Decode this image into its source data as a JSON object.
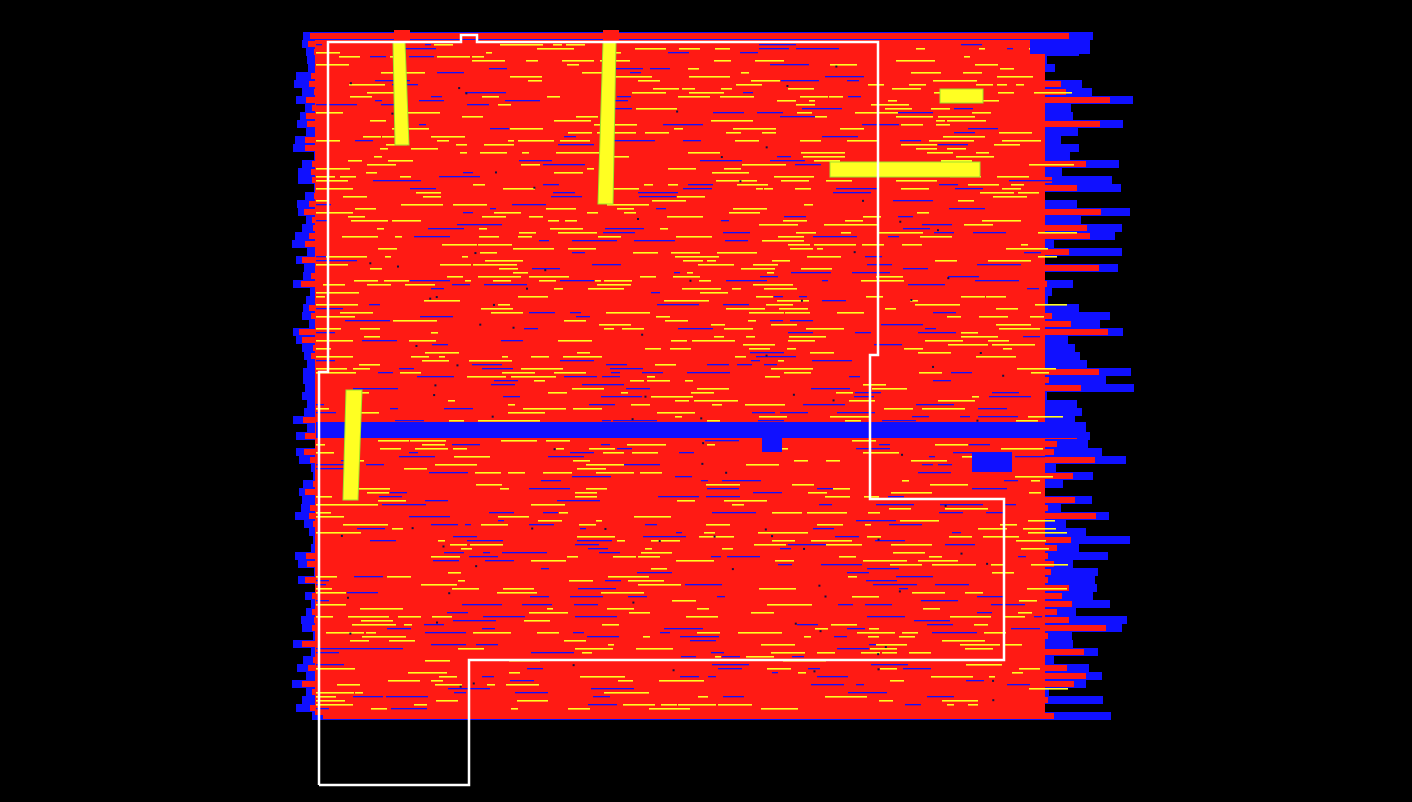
{
  "view": {
    "background_color": "#000000"
  },
  "legend_colors": {
    "ground_pass": "#ff1a14",
    "uncovered": "#1010ff",
    "highlight": "#ffff22",
    "highlight_edge": "#9fe02a",
    "boundary": "#ffffff"
  },
  "layers": [
    {
      "id": "coverage-raster",
      "color_key": "ground_pass"
    },
    {
      "id": "gap-band",
      "color_key": "uncovered"
    },
    {
      "id": "marker-strips",
      "color_key": "highlight"
    },
    {
      "id": "field-boundary",
      "color_key": "boundary"
    }
  ]
}
